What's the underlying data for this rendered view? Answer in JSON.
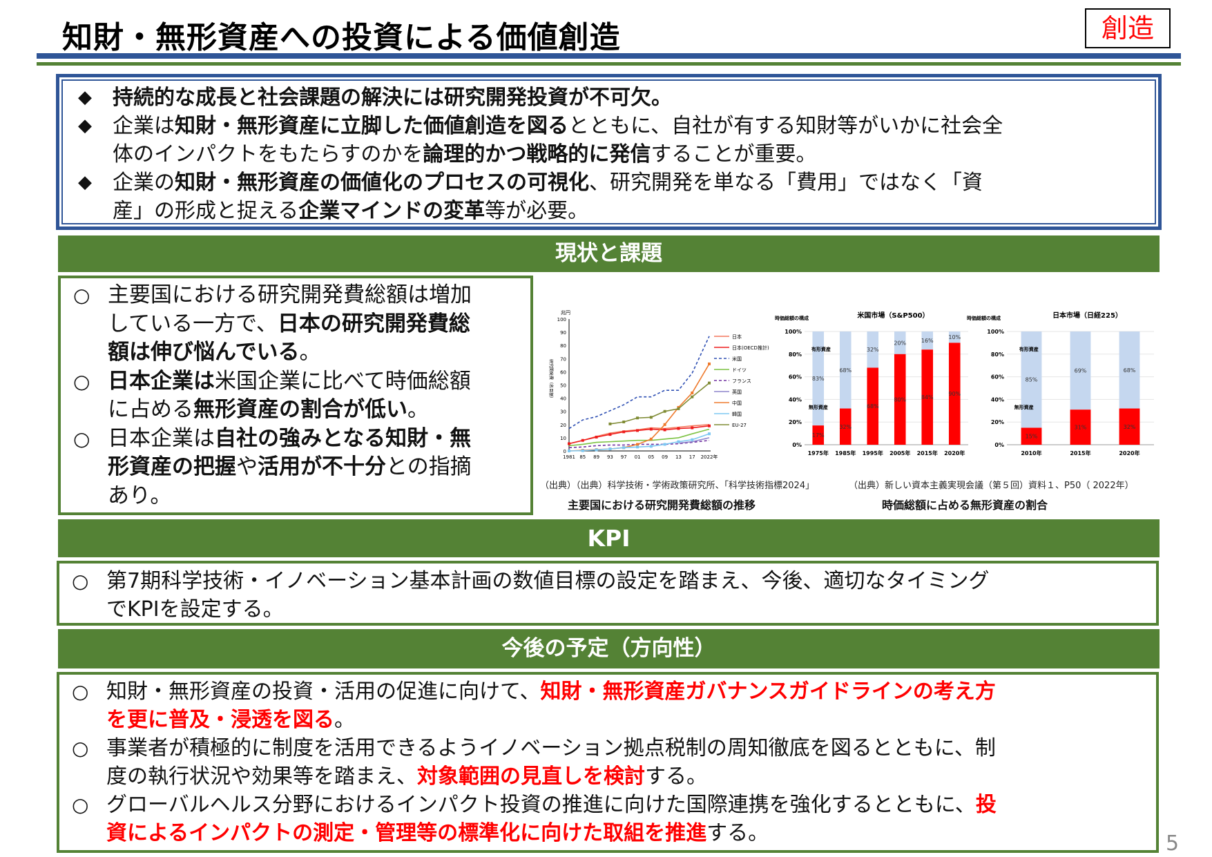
{
  "header": {
    "title": "知財・無形資産への投資による価値創造",
    "tag": "創造"
  },
  "summary": {
    "bullet": "◆",
    "items": [
      {
        "lines": [
          [
            {
              "t": "持続的な成長と社会課題の解決には研究開発投資が不可欠。",
              "b": true
            }
          ]
        ]
      },
      {
        "lines": [
          [
            {
              "t": "企業は",
              "b": false
            },
            {
              "t": "知財・無形資産に立脚した価値創造を図る",
              "b": true
            },
            {
              "t": "とともに、自社が有する知財等がいかに社会全",
              "b": false
            }
          ],
          [
            {
              "t": "体のインパクトをもたらすのかを",
              "b": false
            },
            {
              "t": "論理的かつ戦略的に発信",
              "b": true
            },
            {
              "t": "することが重要。",
              "b": false
            }
          ]
        ]
      },
      {
        "lines": [
          [
            {
              "t": "企業の",
              "b": false
            },
            {
              "t": "知財・無形資産の価値化のプロセスの可視化",
              "b": true
            },
            {
              "t": "、研究開発を単なる「費用」ではなく「資",
              "b": false
            }
          ],
          [
            {
              "t": "産」の形成と捉える",
              "b": false
            },
            {
              "t": "企業マインドの変革",
              "b": true
            },
            {
              "t": "等が必要。",
              "b": false
            }
          ]
        ]
      }
    ]
  },
  "sections": {
    "current": {
      "title": "現状と課題",
      "bullet": "○",
      "items": [
        {
          "lines": [
            [
              {
                "t": "主要国における研究開発費総額は増加",
                "b": false
              }
            ],
            [
              {
                "t": "している一方で、",
                "b": false
              },
              {
                "t": "日本の研究開発費総",
                "b": true
              }
            ],
            [
              {
                "t": "額は伸び悩んでいる",
                "b": true
              },
              {
                "t": "。",
                "b": false
              }
            ]
          ]
        },
        {
          "lines": [
            [
              {
                "t": "日本企業は",
                "b": true
              },
              {
                "t": "米国企業に比べて時価総額",
                "b": false
              }
            ],
            [
              {
                "t": "に占める",
                "b": false
              },
              {
                "t": "無形資産の割合が低い",
                "b": true
              },
              {
                "t": "。",
                "b": false
              }
            ]
          ]
        },
        {
          "lines": [
            [
              {
                "t": "日本企業は",
                "b": false
              },
              {
                "t": "自社の強みとなる知財・無",
                "b": true
              }
            ],
            [
              {
                "t": "形資産の把握",
                "b": true
              },
              {
                "t": "や",
                "b": false
              },
              {
                "t": "活用が不十分",
                "b": true
              },
              {
                "t": "との指摘",
                "b": false
              }
            ],
            [
              {
                "t": "あり。",
                "b": false
              }
            ]
          ]
        }
      ]
    },
    "kpi": {
      "title": "KPI",
      "bullet": "○",
      "items": [
        {
          "lines": [
            [
              {
                "t": "第7期科学技術・イノベーション基本計画の数値目標の設定を踏まえ、今後、適切なタイミング",
                "b": false
              }
            ],
            [
              {
                "t": "でKPIを設定する。",
                "b": false
              }
            ]
          ]
        }
      ]
    },
    "future": {
      "title": "今後の予定（方向性）",
      "bullet": "○",
      "items": [
        {
          "lines": [
            [
              {
                "t": "知財・無形資産の投資・活用の促進に向けて、",
                "b": false
              },
              {
                "t": "知財・無形資産ガバナンスガイドラインの考え方",
                "r": true
              }
            ],
            [
              {
                "t": "を更に普及・浸透を図る",
                "r": true
              },
              {
                "t": "。",
                "b": false
              }
            ]
          ]
        },
        {
          "lines": [
            [
              {
                "t": "事業者が積極的に制度を活用できるようイノベーション拠点税制の周知徹底を図るとともに、制",
                "b": false
              }
            ],
            [
              {
                "t": "度の執行状況や効果等を踏まえ、",
                "b": false
              },
              {
                "t": "対象範囲の見直しを検討",
                "r": true
              },
              {
                "t": "する。",
                "b": false
              }
            ]
          ]
        },
        {
          "lines": [
            [
              {
                "t": "グローバルヘルス分野におけるインパクト投資の推進に向けた国際連携を強化するとともに、",
                "b": false
              },
              {
                "t": "投",
                "r": true
              }
            ],
            [
              {
                "t": "資によるインパクトの測定・管理等の標準化に向けた取組を推進",
                "r": true
              },
              {
                "t": "する。",
                "b": false
              }
            ]
          ]
        }
      ]
    }
  },
  "figures": {
    "source_left": "（出典）（出典）科学技術・学術政策研究所、「科学技術指標2024」",
    "source_right": "（出典）新しい資本主義実現会議（第５回）資料１、P50（ 2022年）",
    "caption_left": "主要国における研究開発費総額の推移",
    "caption_right": "時価総額に占める無形資産の割合"
  },
  "chart_data": [
    {
      "type": "line",
      "title": "主要国における研究開発費総額の推移",
      "unit_label": "兆円",
      "ylabel": "研究開発費（名目額）",
      "xlabel": "",
      "ylim": [
        0,
        100
      ],
      "yticks": [
        0,
        10,
        20,
        30,
        40,
        50,
        60,
        70,
        80,
        90,
        100
      ],
      "xticks": [
        "1981",
        "85",
        "89",
        "93",
        "97",
        "01",
        "05",
        "09",
        "13",
        "17",
        "2022年"
      ],
      "x": [
        1981,
        1985,
        1989,
        1993,
        1997,
        2001,
        2005,
        2009,
        2013,
        2017,
        2022
      ],
      "legend": [
        "日本",
        "日本(OECD推計)",
        "米国",
        "ドイツ",
        "フランス",
        "英国",
        "中国",
        "韓国",
        "EU-27"
      ],
      "series": [
        {
          "name": "日本",
          "color": "#f4775b",
          "style": "solid",
          "values": [
            5.5,
            8,
            11,
            13.5,
            15,
            16,
            17.5,
            17,
            18,
            19,
            20
          ]
        },
        {
          "name": "日本(OECD推計)",
          "color": "#ee1c1c",
          "style": "dot-marker",
          "values": [
            5.5,
            8,
            10.5,
            12.5,
            14.5,
            15.5,
            16.5,
            16,
            17,
            17.5,
            19
          ]
        },
        {
          "name": "米国",
          "color": "#2e4fb3",
          "style": "dashed",
          "values": [
            17,
            23.5,
            26,
            30.5,
            35,
            41,
            41,
            46,
            46,
            59,
            87
          ]
        },
        {
          "name": "ドイツ",
          "color": "#7cc242",
          "style": "solid",
          "values": [
            4,
            5,
            6.5,
            7,
            7.5,
            8,
            8,
            9,
            10,
            13,
            16.5
          ]
        },
        {
          "name": "フランス",
          "color": "#7030a0",
          "style": "dashed",
          "values": [
            2.5,
            3,
            4,
            4.5,
            4.5,
            5,
            5,
            5,
            5.5,
            6.5,
            8
          ]
        },
        {
          "name": "英国",
          "color": "#8e85cc",
          "style": "solid",
          "values": [
            null,
            null,
            null,
            null,
            null,
            null,
            null,
            null,
            6,
            7,
            10
          ]
        },
        {
          "name": "中国",
          "color": "#ee7a2d",
          "style": "triangle-marker",
          "values": [
            0,
            0.5,
            1,
            1.5,
            2.5,
            5,
            9,
            20,
            33,
            44,
            66
          ]
        },
        {
          "name": "韓国",
          "color": "#7dc8f2",
          "style": "x-marker",
          "values": [
            0,
            0.2,
            0.8,
            1.5,
            2.5,
            3,
            3.5,
            5,
            7,
            8.5,
            13
          ]
        },
        {
          "name": "EU-27",
          "color": "#7f8b34",
          "style": "square-marker",
          "values": [
            null,
            null,
            null,
            20.5,
            22,
            25,
            25.5,
            30,
            32,
            41,
            51.5
          ]
        }
      ]
    },
    {
      "type": "bar",
      "stacked": true,
      "title": "米国市場（S&P500）",
      "subtitle": "時価総額の構成",
      "categories": [
        "1975年",
        "1985年",
        "1995年",
        "2005年",
        "2015年",
        "2020年"
      ],
      "yticks": [
        "0%",
        "20%",
        "40%",
        "60%",
        "80%",
        "100%"
      ],
      "ylim": [
        0,
        100
      ],
      "annotations": [
        "有形資産",
        "無形資産"
      ],
      "series": [
        {
          "name": "無形資産",
          "color": "#ff0000",
          "values": [
            17,
            32,
            68,
            80,
            84,
            90
          ]
        },
        {
          "name": "有形資産",
          "color": "#c5d7ef",
          "values": [
            83,
            68,
            32,
            20,
            16,
            10
          ]
        }
      ]
    },
    {
      "type": "bar",
      "stacked": true,
      "title": "日本市場（日経225）",
      "subtitle": "時価総額の構成",
      "categories": [
        "2010年",
        "2015年",
        "2020年"
      ],
      "yticks": [
        "0%",
        "20%",
        "40%",
        "60%",
        "80%",
        "100%"
      ],
      "ylim": [
        0,
        100
      ],
      "annotations": [
        "有形資産",
        "無形資産"
      ],
      "series": [
        {
          "name": "無形資産",
          "color": "#ff0000",
          "values": [
            15,
            31,
            32
          ]
        },
        {
          "name": "有形資産",
          "color": "#c5d7ef",
          "values": [
            85,
            69,
            68
          ]
        }
      ]
    }
  ],
  "footer": {
    "page_number": "5"
  },
  "colors": {
    "navy": "#2f5597",
    "green": "#548235",
    "red": "#ff0000"
  }
}
